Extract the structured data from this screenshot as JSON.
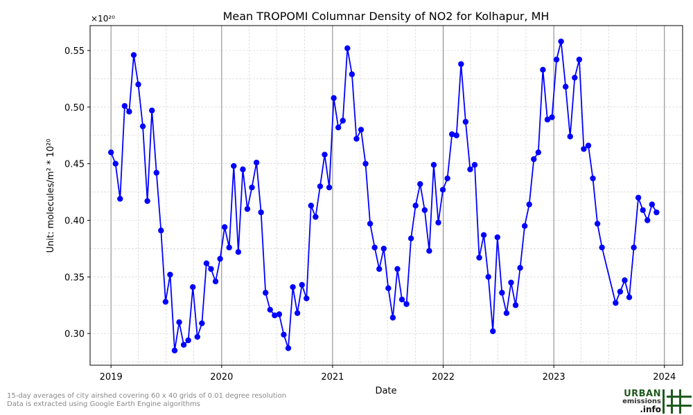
{
  "chart_data": {
    "type": "line",
    "title": "Mean TROPOMI Columnar Density of NO2 for Kolhapur, MH",
    "xlabel": "Date",
    "ylabel": "Unit: molecules/m² * 10²⁰",
    "y_multiplier": "×10²⁰",
    "xlim": [
      "2018-10-24",
      "2024-03-01"
    ],
    "ylim": [
      0.272,
      0.572
    ],
    "x_ticks": [
      {
        "date": "2019-01-01",
        "label": "2019"
      },
      {
        "date": "2020-01-01",
        "label": "2020"
      },
      {
        "date": "2021-01-01",
        "label": "2021"
      },
      {
        "date": "2022-01-01",
        "label": "2022"
      },
      {
        "date": "2023-01-01",
        "label": "2023"
      },
      {
        "date": "2024-01-01",
        "label": "2024"
      }
    ],
    "y_ticks": [
      {
        "value": 0.3,
        "label": "0.30"
      },
      {
        "value": 0.35,
        "label": "0.35"
      },
      {
        "value": 0.4,
        "label": "0.40"
      },
      {
        "value": 0.45,
        "label": "0.45"
      },
      {
        "value": 0.5,
        "label": "0.50"
      },
      {
        "value": 0.55,
        "label": "0.55"
      }
    ],
    "grid": true,
    "series": [
      {
        "color": "#0000ff",
        "points": [
          {
            "x": "2019-01-01",
            "y": 0.46
          },
          {
            "x": "2019-01-16",
            "y": 0.45
          },
          {
            "x": "2019-01-31",
            "y": 0.419
          },
          {
            "x": "2019-02-15",
            "y": 0.501
          },
          {
            "x": "2019-03-02",
            "y": 0.496
          },
          {
            "x": "2019-03-17",
            "y": 0.546
          },
          {
            "x": "2019-04-01",
            "y": 0.52
          },
          {
            "x": "2019-04-16",
            "y": 0.483
          },
          {
            "x": "2019-05-01",
            "y": 0.417
          },
          {
            "x": "2019-05-16",
            "y": 0.497
          },
          {
            "x": "2019-05-31",
            "y": 0.442
          },
          {
            "x": "2019-06-15",
            "y": 0.391
          },
          {
            "x": "2019-06-30",
            "y": 0.328
          },
          {
            "x": "2019-07-15",
            "y": 0.352
          },
          {
            "x": "2019-07-30",
            "y": 0.285
          },
          {
            "x": "2019-08-14",
            "y": 0.31
          },
          {
            "x": "2019-08-29",
            "y": 0.29
          },
          {
            "x": "2019-09-13",
            "y": 0.294
          },
          {
            "x": "2019-09-28",
            "y": 0.341
          },
          {
            "x": "2019-10-13",
            "y": 0.297
          },
          {
            "x": "2019-10-28",
            "y": 0.309
          },
          {
            "x": "2019-11-12",
            "y": 0.362
          },
          {
            "x": "2019-11-27",
            "y": 0.357
          },
          {
            "x": "2019-12-12",
            "y": 0.346
          },
          {
            "x": "2019-12-27",
            "y": 0.366
          },
          {
            "x": "2020-01-11",
            "y": 0.394
          },
          {
            "x": "2020-01-26",
            "y": 0.376
          },
          {
            "x": "2020-02-10",
            "y": 0.448
          },
          {
            "x": "2020-02-25",
            "y": 0.372
          },
          {
            "x": "2020-03-11",
            "y": 0.445
          },
          {
            "x": "2020-03-26",
            "y": 0.41
          },
          {
            "x": "2020-04-10",
            "y": 0.429
          },
          {
            "x": "2020-04-25",
            "y": 0.451
          },
          {
            "x": "2020-05-10",
            "y": 0.407
          },
          {
            "x": "2020-05-25",
            "y": 0.336
          },
          {
            "x": "2020-06-09",
            "y": 0.321
          },
          {
            "x": "2020-06-24",
            "y": 0.316
          },
          {
            "x": "2020-07-09",
            "y": 0.317
          },
          {
            "x": "2020-07-24",
            "y": 0.299
          },
          {
            "x": "2020-08-08",
            "y": 0.287
          },
          {
            "x": "2020-08-23",
            "y": 0.341
          },
          {
            "x": "2020-09-07",
            "y": 0.318
          },
          {
            "x": "2020-09-22",
            "y": 0.343
          },
          {
            "x": "2020-10-07",
            "y": 0.331
          },
          {
            "x": "2020-10-22",
            "y": 0.413
          },
          {
            "x": "2020-11-06",
            "y": 0.403
          },
          {
            "x": "2020-11-21",
            "y": 0.43
          },
          {
            "x": "2020-12-06",
            "y": 0.458
          },
          {
            "x": "2020-12-21",
            "y": 0.429
          },
          {
            "x": "2021-01-05",
            "y": 0.508
          },
          {
            "x": "2021-01-20",
            "y": 0.482
          },
          {
            "x": "2021-02-04",
            "y": 0.488
          },
          {
            "x": "2021-02-19",
            "y": 0.552
          },
          {
            "x": "2021-03-06",
            "y": 0.529
          },
          {
            "x": "2021-03-21",
            "y": 0.472
          },
          {
            "x": "2021-04-05",
            "y": 0.48
          },
          {
            "x": "2021-04-20",
            "y": 0.45
          },
          {
            "x": "2021-05-05",
            "y": 0.397
          },
          {
            "x": "2021-05-20",
            "y": 0.376
          },
          {
            "x": "2021-06-04",
            "y": 0.357
          },
          {
            "x": "2021-06-19",
            "y": 0.375
          },
          {
            "x": "2021-07-04",
            "y": 0.34
          },
          {
            "x": "2021-07-19",
            "y": 0.314
          },
          {
            "x": "2021-08-03",
            "y": 0.357
          },
          {
            "x": "2021-08-18",
            "y": 0.33
          },
          {
            "x": "2021-09-02",
            "y": 0.326
          },
          {
            "x": "2021-09-17",
            "y": 0.384
          },
          {
            "x": "2021-10-02",
            "y": 0.413
          },
          {
            "x": "2021-10-17",
            "y": 0.432
          },
          {
            "x": "2021-11-01",
            "y": 0.409
          },
          {
            "x": "2021-11-16",
            "y": 0.373
          },
          {
            "x": "2021-12-01",
            "y": 0.449
          },
          {
            "x": "2021-12-16",
            "y": 0.398
          },
          {
            "x": "2021-12-31",
            "y": 0.427
          },
          {
            "x": "2022-01-15",
            "y": 0.437
          },
          {
            "x": "2022-01-30",
            "y": 0.476
          },
          {
            "x": "2022-02-14",
            "y": 0.475
          },
          {
            "x": "2022-03-01",
            "y": 0.538
          },
          {
            "x": "2022-03-16",
            "y": 0.487
          },
          {
            "x": "2022-03-31",
            "y": 0.445
          },
          {
            "x": "2022-04-15",
            "y": 0.449
          },
          {
            "x": "2022-04-30",
            "y": 0.367
          },
          {
            "x": "2022-05-15",
            "y": 0.387
          },
          {
            "x": "2022-05-30",
            "y": 0.35
          },
          {
            "x": "2022-06-14",
            "y": 0.302
          },
          {
            "x": "2022-06-29",
            "y": 0.385
          },
          {
            "x": "2022-07-14",
            "y": 0.336
          },
          {
            "x": "2022-07-29",
            "y": 0.318
          },
          {
            "x": "2022-08-13",
            "y": 0.345
          },
          {
            "x": "2022-08-28",
            "y": 0.325
          },
          {
            "x": "2022-09-12",
            "y": 0.358
          },
          {
            "x": "2022-09-27",
            "y": 0.395
          },
          {
            "x": "2022-10-12",
            "y": 0.414
          },
          {
            "x": "2022-10-27",
            "y": 0.454
          },
          {
            "x": "2022-11-11",
            "y": 0.46
          },
          {
            "x": "2022-11-26",
            "y": 0.533
          },
          {
            "x": "2022-12-11",
            "y": 0.489
          },
          {
            "x": "2022-12-26",
            "y": 0.491
          },
          {
            "x": "2023-01-10",
            "y": 0.542
          },
          {
            "x": "2023-01-25",
            "y": 0.558
          },
          {
            "x": "2023-02-09",
            "y": 0.518
          },
          {
            "x": "2023-02-24",
            "y": 0.474
          },
          {
            "x": "2023-03-11",
            "y": 0.526
          },
          {
            "x": "2023-03-26",
            "y": 0.542
          },
          {
            "x": "2023-04-10",
            "y": 0.463
          },
          {
            "x": "2023-04-25",
            "y": 0.466
          },
          {
            "x": "2023-05-10",
            "y": 0.437
          },
          {
            "x": "2023-05-25",
            "y": 0.397
          },
          {
            "x": "2023-06-09",
            "y": 0.376
          },
          {
            "x": "2023-07-24",
            "y": 0.327
          },
          {
            "x": "2023-08-08",
            "y": 0.337
          },
          {
            "x": "2023-08-23",
            "y": 0.347
          },
          {
            "x": "2023-09-07",
            "y": 0.332
          },
          {
            "x": "2023-09-22",
            "y": 0.376
          },
          {
            "x": "2023-10-07",
            "y": 0.42
          },
          {
            "x": "2023-10-22",
            "y": 0.409
          },
          {
            "x": "2023-11-06",
            "y": 0.4
          },
          {
            "x": "2023-11-21",
            "y": 0.414
          },
          {
            "x": "2023-12-06",
            "y": 0.407
          }
        ]
      }
    ]
  },
  "footnote": {
    "line1": "15-day averages of city airshed covering 60 x 40 grids of 0.01 degree resolution",
    "line2": "Data is extracted using Google Earth Engine algorithms"
  },
  "logo": {
    "line1": "URBAN",
    "line2": "emissions",
    "line3": ".info"
  }
}
